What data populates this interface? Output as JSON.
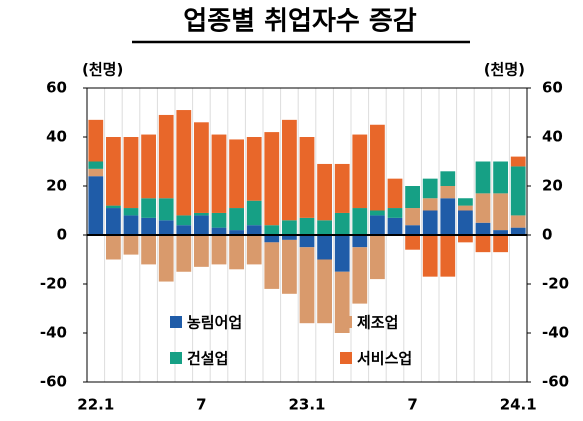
{
  "chart_data": {
    "type": "bar",
    "stacked": true,
    "title": "업종별 취업자수 증감",
    "y_unit": "(천명)",
    "y2_unit": "(천명)",
    "categories": [
      "22.1",
      null,
      null,
      null,
      null,
      null,
      "7",
      null,
      null,
      null,
      null,
      null,
      "23.1",
      null,
      null,
      null,
      null,
      null,
      "7",
      null,
      null,
      null,
      null,
      null,
      "24.1"
    ],
    "series": [
      {
        "name": "농림어업",
        "color": "#1f5ca8",
        "values": [
          24,
          11,
          8,
          7,
          6,
          4,
          8,
          3,
          2,
          4,
          -3,
          -2,
          -5,
          -10,
          -15,
          -5,
          8,
          7,
          4,
          10,
          15,
          10,
          5,
          2,
          3
        ]
      },
      {
        "name": "제조업",
        "color": "#d99a6c",
        "values": [
          3,
          -10,
          -8,
          -12,
          -19,
          -15,
          -13,
          -12,
          -14,
          -12,
          -19,
          -22,
          -31,
          -26,
          -25,
          -23,
          -18,
          0,
          7,
          5,
          5,
          2,
          12,
          15,
          5
        ]
      },
      {
        "name": "건설업",
        "color": "#16a085",
        "values": [
          3,
          1,
          3,
          8,
          9,
          4,
          1,
          6,
          9,
          10,
          4,
          6,
          7,
          6,
          9,
          11,
          2,
          4,
          9,
          8,
          6,
          3,
          13,
          13,
          20
        ]
      },
      {
        "name": "서비스업",
        "color": "#e8672a",
        "values": [
          17,
          28,
          29,
          26,
          34,
          43,
          37,
          32,
          28,
          26,
          38,
          41,
          33,
          23,
          20,
          30,
          35,
          12,
          -6,
          -17,
          -17,
          -3,
          -7,
          -7,
          4
        ]
      }
    ],
    "ylim": [
      -60,
      60
    ],
    "yticks": [
      -60,
      -40,
      -20,
      0,
      20,
      40,
      60
    ],
    "y2lim": [
      -60,
      60
    ],
    "y2ticks": [
      -60,
      -40,
      -20,
      0,
      20,
      40,
      60
    ]
  }
}
